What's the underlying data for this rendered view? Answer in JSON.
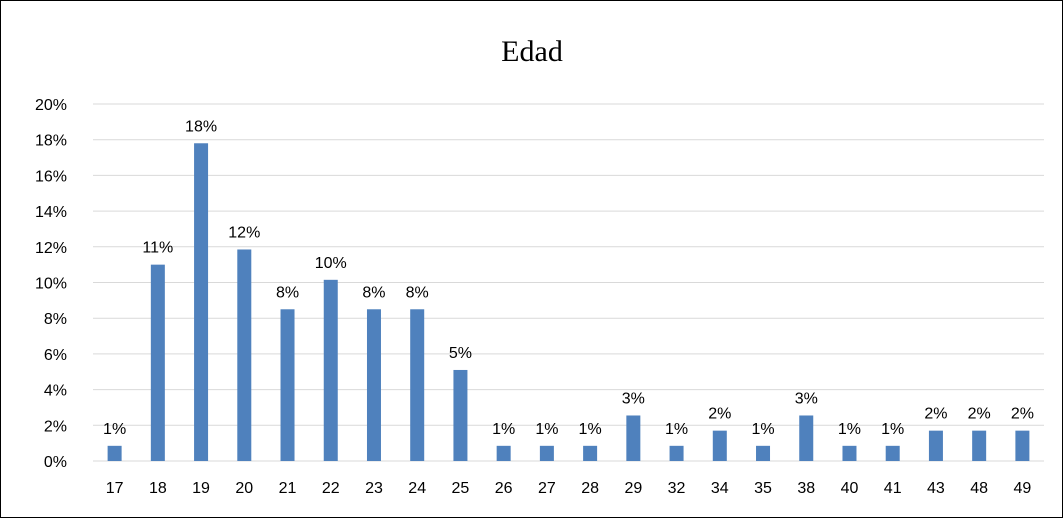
{
  "chart_data": {
    "type": "bar",
    "title": "Edad",
    "xlabel": "",
    "ylabel": "",
    "categories": [
      "17",
      "18",
      "19",
      "20",
      "21",
      "22",
      "23",
      "24",
      "25",
      "26",
      "27",
      "28",
      "29",
      "32",
      "34",
      "35",
      "38",
      "40",
      "41",
      "43",
      "48",
      "49"
    ],
    "values": [
      0.85,
      11.0,
      17.8,
      11.85,
      8.5,
      10.15,
      8.5,
      8.5,
      5.1,
      0.85,
      0.85,
      0.85,
      2.55,
      0.85,
      1.7,
      0.85,
      2.55,
      0.85,
      0.85,
      1.7,
      1.7,
      1.7
    ],
    "data_labels": [
      "1%",
      "11%",
      "18%",
      "12%",
      "8%",
      "10%",
      "8%",
      "8%",
      "5%",
      "1%",
      "1%",
      "1%",
      "3%",
      "1%",
      "2%",
      "1%",
      "3%",
      "1%",
      "1%",
      "2%",
      "2%",
      "2%"
    ],
    "ylim": [
      0,
      20
    ],
    "y_ticks": [
      "0%",
      "2%",
      "4%",
      "6%",
      "8%",
      "10%",
      "12%",
      "14%",
      "16%",
      "18%",
      "20%"
    ],
    "grid": true,
    "legend": "none",
    "colors": {
      "bar": "#4F81BD",
      "grid": "#D9D9D9",
      "axis": "#D9D9D9"
    }
  }
}
